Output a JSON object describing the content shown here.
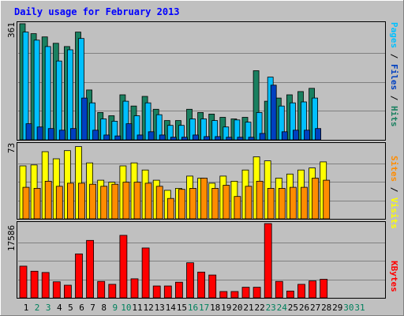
{
  "chart_data": {
    "type": "bar",
    "title": "Daily usage for February 2013",
    "x": [
      "1",
      "2",
      "3",
      "4",
      "5",
      "6",
      "7",
      "8",
      "9",
      "10",
      "11",
      "12",
      "13",
      "14",
      "15",
      "16",
      "17",
      "18",
      "19",
      "20",
      "21",
      "22",
      "23",
      "24",
      "25",
      "26",
      "27",
      "28",
      "29",
      "30",
      "31"
    ],
    "weekend_days": [
      "2",
      "3",
      "9",
      "10",
      "16",
      "17",
      "23",
      "24",
      "30",
      "31"
    ],
    "panels": [
      {
        "name": "top",
        "ymax_label": "361",
        "ymax": 361,
        "right_label": [
          "Pages",
          " / ",
          "Files",
          " / ",
          "Hits"
        ],
        "series": [
          {
            "name": "Hits",
            "color": "#1a8060",
            "values": [
              361,
              330,
              320,
              300,
              290,
              335,
              155,
              85,
              75,
              140,
              105,
              135,
              95,
              60,
              60,
              95,
              85,
              80,
              70,
              65,
              70,
              215,
              120,
              130,
              140,
              150,
              160,
              null,
              null,
              null,
              null
            ]
          },
          {
            "name": "Files",
            "color": "#00c0ff",
            "values": [
              335,
              310,
              290,
              245,
              280,
              315,
              115,
              65,
              58,
              120,
              75,
              115,
              78,
              45,
              45,
              65,
              65,
              60,
              40,
              62,
              55,
              85,
              195,
              105,
              115,
              118,
              130,
              null,
              null,
              null,
              null
            ]
          },
          {
            "name": "Pages",
            "color": "#0040c0",
            "values": [
              50,
              40,
              35,
              30,
              35,
              130,
              30,
              15,
              12,
              50,
              15,
              25,
              15,
              8,
              8,
              15,
              10,
              10,
              8,
              8,
              8,
              20,
              170,
              25,
              30,
              30,
              35,
              null,
              null,
              null,
              null
            ]
          }
        ]
      },
      {
        "name": "middle",
        "ymax_label": "73",
        "ymax": 73,
        "right_label": [
          "Sites",
          " / ",
          "Visits"
        ],
        "series": [
          {
            "name": "Visits",
            "color": "#ffff00",
            "values": [
              52,
              53,
              66,
              59,
              67,
              71,
              55,
              38,
              36,
              52,
              55,
              48,
              38,
              28,
              30,
              42,
              40,
              35,
              42,
              37,
              48,
              61,
              57,
              40,
              44,
              48,
              50,
              56,
              null,
              null,
              null
            ]
          },
          {
            "name": "Sites",
            "color": "#ff8c00",
            "values": [
              31,
              30,
              37,
              32,
              35,
              35,
              34,
              32,
              34,
              36,
              36,
              35,
              32,
              20,
              29,
              30,
              40,
              30,
              33,
              22,
              32,
              37,
              30,
              30,
              31,
              31,
              40,
              38,
              null,
              null,
              null
            ]
          }
        ]
      },
      {
        "name": "bottom",
        "ymax_label": "17586",
        "ymax": 17586,
        "right_label": [
          "KBytes"
        ],
        "series": [
          {
            "name": "KBytes",
            "color": "#ff0000",
            "values": [
              7500,
              6300,
              6000,
              3800,
              3000,
              10400,
              13600,
              3900,
              3200,
              14800,
              4500,
              11800,
              2800,
              2800,
              3700,
              8300,
              6100,
              5400,
              1500,
              1500,
              2500,
              2500,
              17586,
              3900,
              1600,
              3200,
              4000,
              4400,
              null,
              null,
              null
            ]
          }
        ]
      }
    ],
    "colors": {
      "background": "#c0c0c0",
      "plot_border": "#000000",
      "gridline": "#808080",
      "weekday_label": "#000000",
      "weekend_label": "#00805c",
      "title": "#0000ff"
    }
  }
}
